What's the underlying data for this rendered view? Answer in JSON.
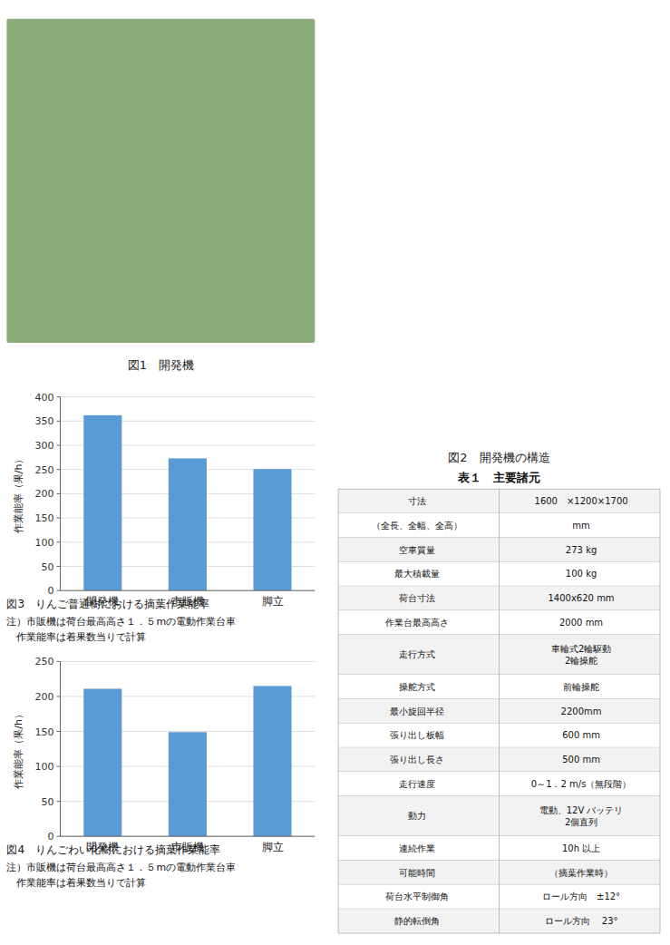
{
  "chart_data": [
    {
      "type": "image",
      "title": "図1　開発機"
    },
    {
      "type": "bar",
      "title": "図3　りんご普通樹における摘葉作業能率",
      "annotations": [
        "注）市販機は荷台最高高さ１．５mの電動作業台車",
        "　作業能率は着果数当りで計算"
      ],
      "categories": [
        "開発機",
        "市販機",
        "脚立"
      ],
      "values": [
        362,
        273,
        251
      ],
      "y_label": "作業能率（果/h）",
      "color": "#5b9bd5",
      "ylim": [
        0,
        400
      ],
      "yticks": [
        0,
        50,
        100,
        150,
        200,
        250,
        300,
        350,
        400
      ],
      "grid": true
    },
    {
      "type": "bar",
      "title": "図4　りんごわい化樹における摘葉作業能率",
      "annotations": [
        "注）市販機は荷台最高高さ１．５mの電動作業台車",
        "　作業能率は着果数当りで計算"
      ],
      "categories": [
        "開発機",
        "市販機",
        "脚立"
      ],
      "values": [
        211,
        149,
        215
      ],
      "y_label": "作業能率（果/h）",
      "color": "#5b9bd5",
      "ylim": [
        0,
        250
      ],
      "yticks": [
        0,
        50,
        100,
        150,
        200,
        250
      ],
      "grid": true
    },
    {
      "type": "diagram",
      "title": "図2　開発機の構造"
    },
    {
      "type": "table",
      "title": "表１　主要諸元",
      "rows": [
        [
          "寸法",
          "1600　×1200×1700"
        ],
        [
          "（全長、全幅、全高）",
          "mm"
        ],
        [
          "空車質量",
          "273 kg"
        ],
        [
          "最大積載量",
          "100 kg"
        ],
        [
          "荷台寸法",
          "1400x620 mm"
        ],
        [
          "作業台最高高さ",
          "2000 mm"
        ],
        [
          "走行方式",
          "車輪式2輪駆動\n2輪操舵"
        ],
        [
          "操舵方式",
          "前輪操舵"
        ],
        [
          "最小旋回半径",
          "2200mm"
        ],
        [
          "張り出し板幅",
          "600 mm"
        ],
        [
          "張り出し長さ",
          "500 mm"
        ],
        [
          "走行速度",
          "0～1．2 m/s（無段階）"
        ],
        [
          "動力",
          "電動、12V バッテリ\n2個直列"
        ],
        [
          "連続作業",
          "10h 以上"
        ],
        [
          "可能時間",
          "（摘葉作業時）"
        ],
        [
          "荷台水平制御角",
          "ロール方向　±12°"
        ],
        [
          "静的転倒角",
          "ロール方向　 23°"
        ]
      ]
    }
  ]
}
